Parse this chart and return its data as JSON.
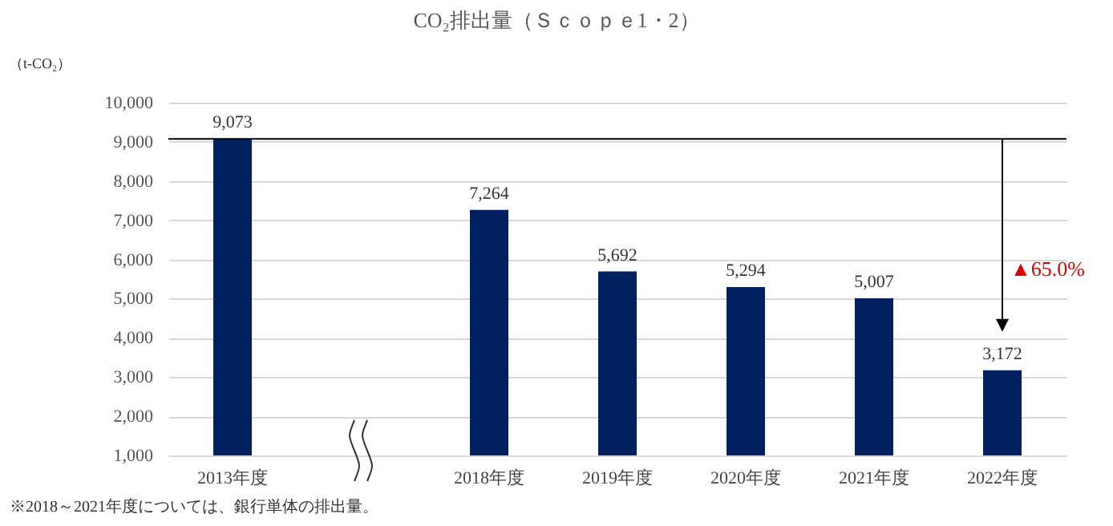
{
  "chart_data": {
    "type": "bar",
    "title": "CO₂排出量（Ｓｃｏｐｅ1・2）",
    "ylabel": "（t-CO₂）",
    "categories": [
      "2013年度",
      null,
      "2018年度",
      "2019年度",
      "2020年度",
      "2021年度",
      "2022年度"
    ],
    "values": [
      9073,
      null,
      7264,
      5692,
      5294,
      5007,
      3172
    ],
    "value_labels": [
      "9,073",
      null,
      "7,264",
      "5,692",
      "5,294",
      "5,007",
      "3,172"
    ],
    "color": "#002060",
    "ylim": [
      1000,
      10000
    ],
    "yticks": [
      {
        "value": 1000,
        "label": "1,000"
      },
      {
        "value": 2000,
        "label": "2,000"
      },
      {
        "value": 3000,
        "label": "3,000"
      },
      {
        "value": 4000,
        "label": "4,000"
      },
      {
        "value": 5000,
        "label": "5,000"
      },
      {
        "value": 6000,
        "label": "6,000"
      },
      {
        "value": 7000,
        "label": "7,000"
      },
      {
        "value": 8000,
        "label": "8,000"
      },
      {
        "value": 9000,
        "label": "9,000"
      },
      {
        "value": 10000,
        "label": "10,000"
      }
    ],
    "grid": "y",
    "ref_lines": [
      {
        "axis": "y",
        "value": 9073,
        "label": null,
        "color": "#000000"
      }
    ],
    "annotations": [
      "※2018～2021年度については、銀行単体の排出量。",
      "▲65.0%"
    ]
  }
}
